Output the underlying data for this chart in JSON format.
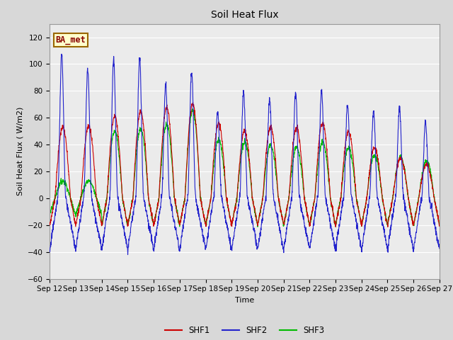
{
  "title": "Soil Heat Flux",
  "ylabel": "Soil Heat Flux ( W/m2)",
  "xlabel": "Time",
  "ylim": [
    -60,
    130
  ],
  "yticks": [
    -60,
    -40,
    -20,
    0,
    20,
    40,
    60,
    80,
    100,
    120
  ],
  "legend_label": "BA_met",
  "series_labels": [
    "SHF1",
    "SHF2",
    "SHF3"
  ],
  "series_colors": [
    "#cc0000",
    "#2222cc",
    "#00bb00"
  ],
  "xtick_labels": [
    "Sep 12",
    "Sep 13",
    "Sep 14",
    "Sep 15",
    "Sep 16",
    "Sep 17",
    "Sep 18",
    "Sep 19",
    "Sep 20",
    "Sep 21",
    "Sep 22",
    "Sep 23",
    "Sep 24",
    "Sep 25",
    "Sep 26",
    "Sep 27"
  ],
  "bg_color": "#d8d8d8",
  "plot_bg": "#ebebeb",
  "grid_color": "#ffffff",
  "n_days": 15,
  "start_day": 12,
  "day_peaks_shf1": [
    53,
    54,
    61,
    65,
    68,
    70,
    56,
    50,
    53,
    52,
    56,
    50,
    38,
    30,
    25
  ],
  "day_peaks_shf2": [
    108,
    96,
    104,
    105,
    85,
    94,
    65,
    79,
    74,
    79,
    80,
    70,
    65,
    67,
    56
  ],
  "day_peaks_shf3": [
    13,
    13,
    50,
    52,
    55,
    65,
    44,
    42,
    40,
    38,
    42,
    38,
    32,
    31,
    28
  ],
  "night_shf1": -20,
  "night_shf2": -38,
  "night_shf3": -12
}
